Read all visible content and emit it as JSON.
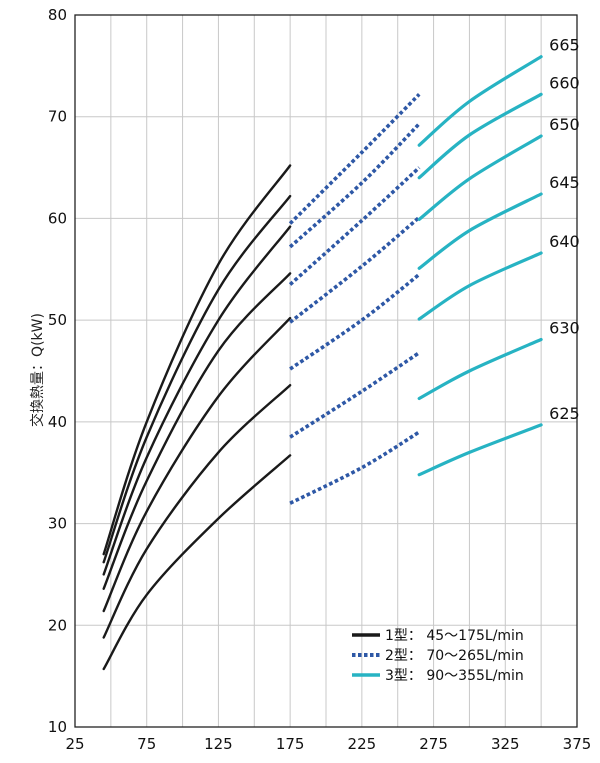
{
  "chart_data": {
    "type": "line",
    "ylabel": "交換熱量：Q(kW)",
    "xlabel": "",
    "xlim": [
      25,
      375
    ],
    "ylim": [
      10,
      80
    ],
    "xticks": [
      25,
      75,
      125,
      175,
      225,
      275,
      325,
      375
    ],
    "yticks": [
      10,
      20,
      30,
      40,
      50,
      60,
      70,
      80
    ],
    "grid": true,
    "legend_position": "bottom-right",
    "legend": [
      {
        "group": "type1",
        "label": "1型：  45～175L/min"
      },
      {
        "group": "type2",
        "label": "2型：  70～265L/min"
      },
      {
        "group": "type3",
        "label": "3型：  90～355L/min"
      }
    ],
    "styles": {
      "type1": {
        "color": "#1a1a1a",
        "dashed": false
      },
      "type2": {
        "color": "#2e58a6",
        "dashed": true
      },
      "type3": {
        "color": "#27b3c3",
        "dashed": false
      }
    },
    "series": [
      {
        "name": "625",
        "label": "625",
        "type1": [
          [
            45,
            15.7
          ],
          [
            75,
            23.0
          ],
          [
            125,
            30.5
          ],
          [
            175,
            36.7
          ]
        ],
        "type2": [
          [
            175,
            32.0
          ],
          [
            225,
            35.5
          ],
          [
            265,
            39.0
          ]
        ],
        "type3": [
          [
            265,
            34.8
          ],
          [
            300,
            37.0
          ],
          [
            350,
            39.7
          ]
        ]
      },
      {
        "name": "630",
        "label": "630",
        "type1": [
          [
            45,
            18.8
          ],
          [
            75,
            27.5
          ],
          [
            125,
            37.0
          ],
          [
            175,
            43.6
          ]
        ],
        "type2": [
          [
            175,
            38.5
          ],
          [
            225,
            43.0
          ],
          [
            265,
            46.8
          ]
        ],
        "type3": [
          [
            265,
            42.3
          ],
          [
            300,
            45.0
          ],
          [
            350,
            48.1
          ]
        ]
      },
      {
        "name": "640",
        "label": "640",
        "type1": [
          [
            45,
            21.4
          ],
          [
            75,
            31.2
          ],
          [
            125,
            42.5
          ],
          [
            175,
            50.2
          ]
        ],
        "type2": [
          [
            175,
            45.2
          ],
          [
            225,
            50.0
          ],
          [
            265,
            54.5
          ]
        ],
        "type3": [
          [
            265,
            50.1
          ],
          [
            300,
            53.4
          ],
          [
            350,
            56.6
          ]
        ]
      },
      {
        "name": "645",
        "label": "645",
        "type1": [
          [
            45,
            23.6
          ],
          [
            75,
            34.2
          ],
          [
            125,
            47.0
          ],
          [
            175,
            54.6
          ]
        ],
        "type2": [
          [
            175,
            49.8
          ],
          [
            225,
            55.3
          ],
          [
            265,
            60.1
          ]
        ],
        "type3": [
          [
            265,
            55.1
          ],
          [
            300,
            58.8
          ],
          [
            350,
            62.4
          ]
        ]
      },
      {
        "name": "650",
        "label": "650",
        "type1": [
          [
            45,
            25.0
          ],
          [
            75,
            36.5
          ],
          [
            125,
            50.0
          ],
          [
            175,
            59.2
          ]
        ],
        "type2": [
          [
            175,
            53.5
          ],
          [
            225,
            59.8
          ],
          [
            265,
            65.0
          ]
        ],
        "type3": [
          [
            265,
            59.9
          ],
          [
            300,
            63.9
          ],
          [
            350,
            68.1
          ]
        ]
      },
      {
        "name": "660",
        "label": "660",
        "type1": [
          [
            45,
            26.2
          ],
          [
            75,
            38.5
          ],
          [
            125,
            53.0
          ],
          [
            175,
            62.2
          ]
        ],
        "type2": [
          [
            175,
            57.2
          ],
          [
            225,
            63.5
          ],
          [
            265,
            69.3
          ]
        ],
        "type3": [
          [
            265,
            64.0
          ],
          [
            300,
            68.2
          ],
          [
            350,
            72.2
          ]
        ]
      },
      {
        "name": "665",
        "label": "665",
        "type1": [
          [
            45,
            27.0
          ],
          [
            75,
            40.0
          ],
          [
            125,
            55.5
          ],
          [
            175,
            65.2
          ]
        ],
        "type2": [
          [
            175,
            59.5
          ],
          [
            225,
            66.5
          ],
          [
            265,
            72.2
          ]
        ],
        "type3": [
          [
            265,
            67.2
          ],
          [
            300,
            71.5
          ],
          [
            350,
            75.9
          ]
        ]
      }
    ]
  }
}
